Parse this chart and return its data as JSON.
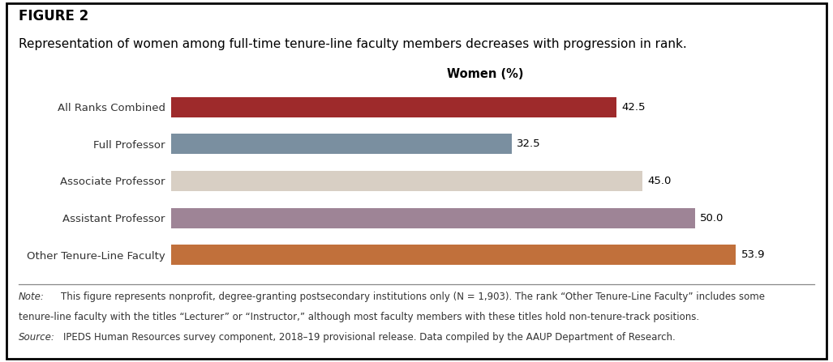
{
  "figure_label": "FIGURE 2",
  "subtitle": "Representation of women among full-time tenure-line faculty members decreases with progression in rank.",
  "xlabel": "Women (%)",
  "categories": [
    "Other Tenure-Line Faculty",
    "Assistant Professor",
    "Associate Professor",
    "Full Professor",
    "All Ranks Combined"
  ],
  "values": [
    53.9,
    50.0,
    45.0,
    32.5,
    42.5
  ],
  "bar_colors": [
    "#c1703b",
    "#9e8496",
    "#d8cfc4",
    "#7a8fa0",
    "#9e2a2b"
  ],
  "xlim": [
    0,
    60
  ],
  "note_line1": " This figure represents nonprofit, degree-granting postsecondary institutions only (⁠⁠N⁠⁠ = 1,903). The rank “Other Tenure-Line Faculty” includes some",
  "note_line2": "tenure-line faculty with the titles “Lecturer” or “Instructor,” although most faculty members with these titles hold non-tenure-track positions.",
  "note_line3": " IPEDS Human Resources survey component, 2018–19 provisional release. Data compiled by the AAUP Department of Research.",
  "background_color": "#ffffff",
  "bar_height": 0.55,
  "value_label_fontsize": 9.5,
  "category_fontsize": 9.5,
  "xlabel_fontsize": 10.5,
  "figure_label_fontsize": 12,
  "subtitle_fontsize": 11,
  "note_fontsize": 8.5
}
